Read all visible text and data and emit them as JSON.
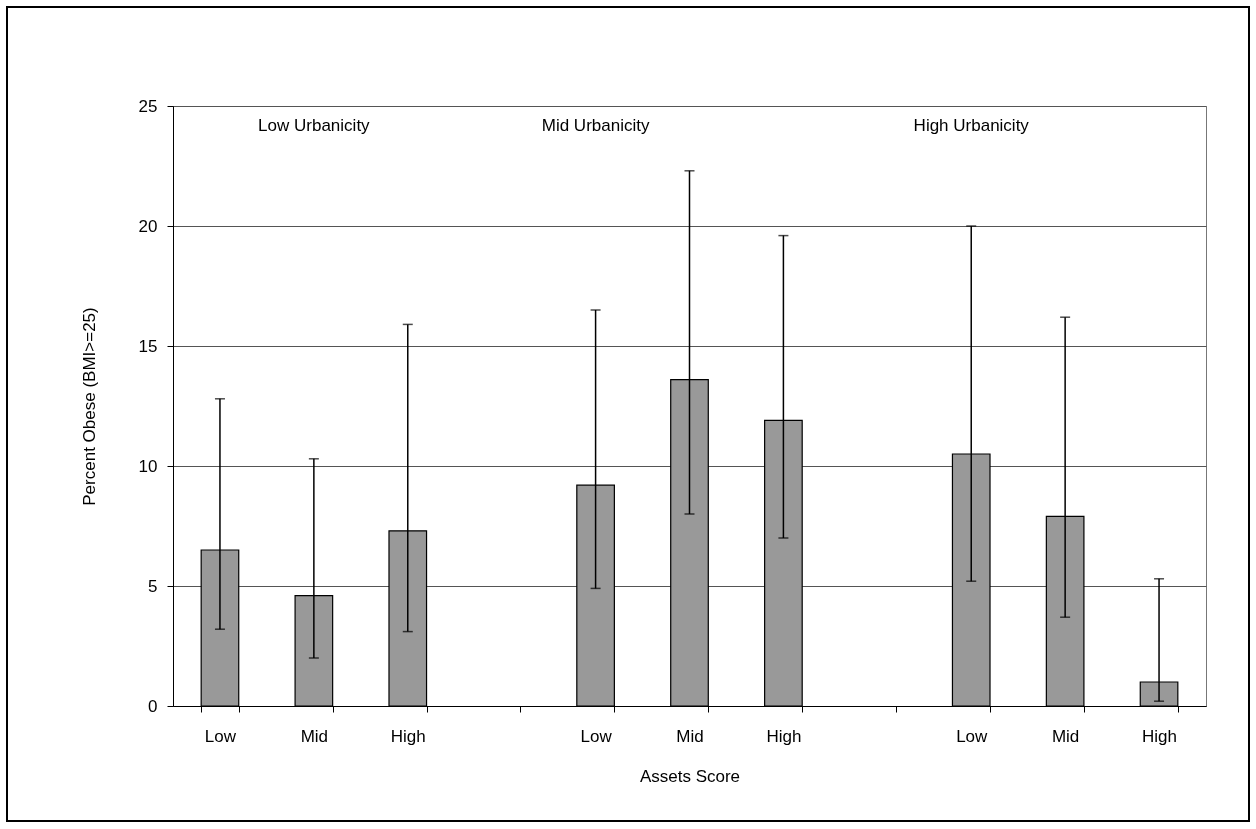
{
  "chart_data": {
    "type": "bar",
    "xlabel": "Assets Score",
    "ylabel": "Percent Obese (BMI>=25)",
    "categories": [
      "Low",
      "Mid",
      "High",
      null,
      "Low",
      "Mid",
      "High",
      null,
      "Low",
      "Mid",
      "High"
    ],
    "values": [
      6.5,
      4.6,
      7.3,
      null,
      9.2,
      13.6,
      11.9,
      null,
      10.5,
      7.9,
      1.0
    ],
    "errors": [
      [
        3.2,
        12.8
      ],
      [
        2.0,
        10.3
      ],
      [
        3.1,
        15.9
      ],
      null,
      [
        4.9,
        16.5
      ],
      [
        8.0,
        22.3
      ],
      [
        7.0,
        19.6
      ],
      null,
      [
        5.2,
        20.0
      ],
      [
        3.7,
        16.2
      ],
      [
        0.2,
        5.3
      ]
    ],
    "color": "#999999",
    "ylim": [
      0,
      25
    ],
    "yticks": [
      0,
      5,
      10,
      15,
      20,
      25
    ],
    "grid": "y",
    "annotations": [
      "Low Urbanicity",
      "Mid Urbanicity",
      "High Urbanicity"
    ]
  }
}
